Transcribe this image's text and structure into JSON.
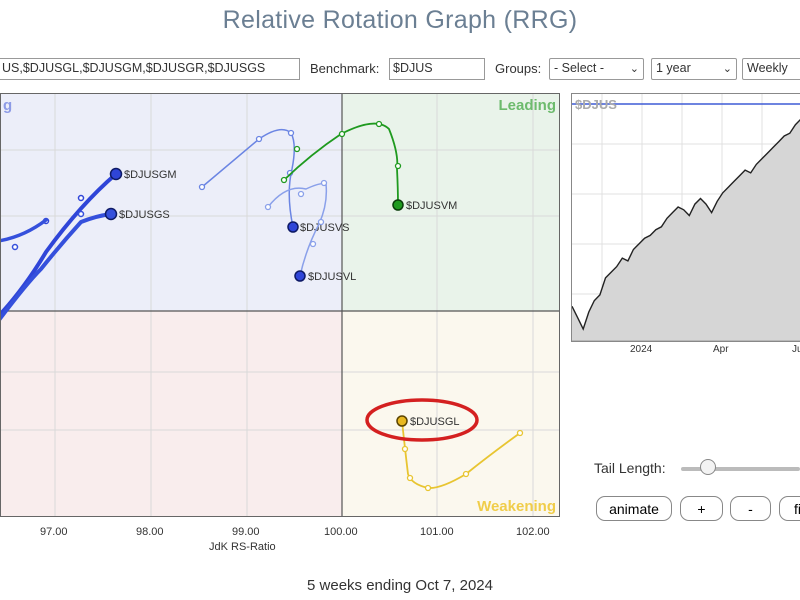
{
  "title": "Relative Rotation Graph (RRG)",
  "toolbar": {
    "symbols_value": "US,$DJUSGL,$DJUSGM,$DJUSGR,$DJUSGS",
    "benchmark_label": "Benchmark:",
    "benchmark_value": "$DJUS",
    "groups_label": "Groups:",
    "groups_value": "- Select -",
    "period_value": "1 year",
    "frequency_value": "Weekly"
  },
  "rrg": {
    "quadrants": {
      "lagging_fragment": "g",
      "leading": "Leading",
      "weakening": "Weakening"
    },
    "xaxis_label": "JdK RS-Ratio",
    "xticks": [
      "97.00",
      "98.00",
      "99.00",
      "100.00",
      "101.00",
      "102.00"
    ],
    "colors": {
      "blue_dark": "#2b3fcf",
      "blue_light": "#6f86e0",
      "green": "#1e8e1e",
      "yellow": "#e8c531",
      "highlight": "#d42020"
    },
    "series": [
      {
        "name": "$DJUSGM",
        "color": "#2f45d8",
        "label": "$DJUSGM"
      },
      {
        "name": "$DJUSGS",
        "color": "#3550dc",
        "label": "$DJUSGS"
      },
      {
        "name": "$DJUSVS",
        "color": "#6b85e3",
        "label": "$DJUSVS"
      },
      {
        "name": "$DJUSVL",
        "color": "#8aa0ea",
        "label": "$DJUSVL"
      },
      {
        "name": "$DJUSVM",
        "color": "#1f9a1f",
        "label": "$DJUSVM"
      },
      {
        "name": "$DJUSGL",
        "color": "#e8c531",
        "label": "$DJUSGL",
        "highlighted": true
      }
    ]
  },
  "mini_chart": {
    "symbol": "$DJUS",
    "xticks": [
      "2024",
      "Apr",
      "Ju"
    ],
    "values": [
      30,
      22,
      14,
      26,
      34,
      38,
      50,
      54,
      58,
      64,
      62,
      70,
      74,
      78,
      80,
      84,
      86,
      92,
      96,
      100,
      98,
      94,
      102,
      106,
      102,
      96,
      104,
      110,
      114,
      118,
      122,
      126,
      124,
      130,
      134,
      138,
      142,
      146,
      150,
      152,
      158,
      162
    ]
  },
  "controls": {
    "tail_length_label": "Tail Length:",
    "tail_length": 0.16,
    "animate_label": "animate",
    "plus_label": "+",
    "minus_label": "-",
    "fit_label": "fi"
  },
  "footer": "5 weeks ending Oct 7, 2024"
}
